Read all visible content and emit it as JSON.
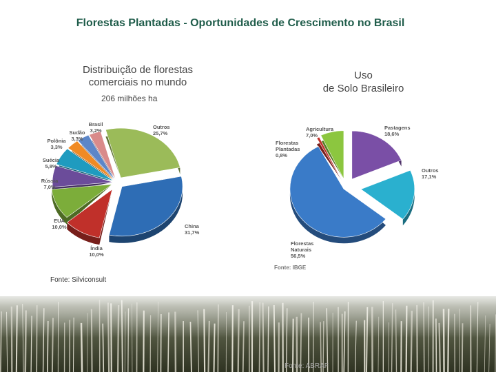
{
  "slide": {
    "title": "Florestas Plantadas - Oportunidades de Crescimento no Brasil",
    "left_subtitle": "Distribuição de florestas\ncomerciais no mundo",
    "left_unit": "206 milhões ha",
    "right_subtitle": "Uso\nde Solo Brasileiro",
    "source_left": "Fonte: Silviconsult",
    "source_right_chart": "Fonte: IBGE",
    "source_bottom": "Fonte: ABRAF"
  },
  "chart_data": [
    {
      "type": "pie",
      "title": "Distribuição de florestas comerciais no mundo",
      "unit": "206 milhões ha",
      "slices": [
        {
          "name": "Outros",
          "value": 25.7,
          "label": "25,7%",
          "color": "#9bbb59"
        },
        {
          "name": "China",
          "value": 31.7,
          "label": "31,7%",
          "color": "#2e6db5"
        },
        {
          "name": "Índia",
          "value": 10.0,
          "label": "10,0%",
          "color": "#c0302a"
        },
        {
          "name": "EUA",
          "value": 10.0,
          "label": "10,0%",
          "color": "#7cad3a"
        },
        {
          "name": "Rússia",
          "value": 7.0,
          "label": "7,0%",
          "color": "#6b4c9a"
        },
        {
          "name": "Suécia",
          "value": 5.8,
          "label": "5,8%",
          "color": "#1f9bbf"
        },
        {
          "name": "Polônia",
          "value": 3.3,
          "label": "3,3%",
          "color": "#f08a24"
        },
        {
          "name": "Sudão",
          "value": 3.3,
          "label": "3,3%",
          "color": "#5c86c8"
        },
        {
          "name": "Brasil",
          "value": 3.2,
          "label": "3,2%",
          "color": "#d98a8a"
        }
      ]
    },
    {
      "type": "pie",
      "title": "Uso de Solo Brasileiro",
      "slices": [
        {
          "name": "Pastagens",
          "value": 18.6,
          "label": "18,6%",
          "color": "#7a4fa6"
        },
        {
          "name": "Outros",
          "value": 17.1,
          "label": "17,1%",
          "color": "#2ab0cf"
        },
        {
          "name": "Florestas Naturais",
          "value": 56.5,
          "label": "56,5%",
          "color": "#3a7bc8"
        },
        {
          "name": "Florestas Plantadas",
          "value": 0.8,
          "label": "0,8%",
          "color": "#c0302a"
        },
        {
          "name": "Agricultura",
          "value": 7.0,
          "label": "7,0%",
          "color": "#8cc63f"
        }
      ]
    }
  ]
}
